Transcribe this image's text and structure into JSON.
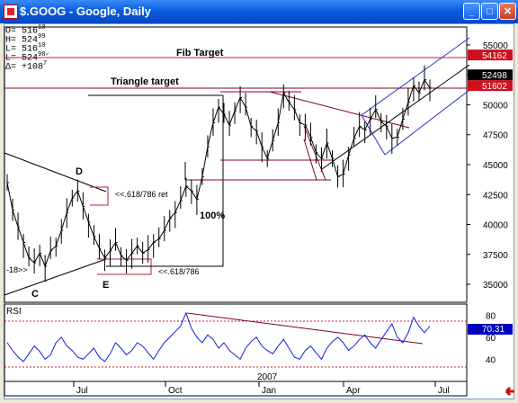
{
  "window": {
    "title": "$.GOOG - Google, Daily",
    "buttons": {
      "minimize": "_",
      "maximize": "□",
      "close": "✕"
    }
  },
  "ohlc": [
    {
      "label": "O=",
      "value": "516",
      "sup": "10"
    },
    {
      "label": "H=",
      "value": "524",
      "sup": "99"
    },
    {
      "label": "L=",
      "value": "516",
      "sup": "10"
    },
    {
      "label": "L=",
      "value": "524",
      "sup": "98✓"
    },
    {
      "label": "Δ=",
      "value": "+108",
      "sup": "7"
    }
  ],
  "annotations": {
    "fib_target": "Fib Target",
    "triangle_target": "Triangle target",
    "point_d": "D",
    "point_c": "C",
    "point_e": "E",
    "ret_label": "<<.618/786 ret",
    "ret_label2": "<<.618/786",
    "pct_label": "100%",
    "left_mark": "-18>>"
  },
  "price_axis": {
    "ticks": [
      "55000",
      "52500",
      "50000",
      "47500",
      "45000",
      "42500",
      "40000",
      "37500",
      "35000"
    ],
    "badges": [
      {
        "text": "54162",
        "color": "#d01020"
      },
      {
        "text": "52498",
        "color": "#000000"
      },
      {
        "text": "51602",
        "color": "#d01020"
      }
    ]
  },
  "rsi": {
    "label": "RSI",
    "ticks": [
      "80",
      "60",
      "40"
    ],
    "badge": "70.31",
    "badge_color": "#0000c0",
    "year_label": "2007"
  },
  "time_axis": {
    "ticks": [
      "Jul",
      "Oct",
      "Jan",
      "Apr",
      "Jul"
    ]
  },
  "colors": {
    "price": "#000000",
    "target_line": "#c02030",
    "channel": "#2030d0",
    "trend": "#800020",
    "rsi_line": "#1020e0"
  },
  "chart_data": {
    "type": "line",
    "title": "$.GOOG - Google, Daily",
    "ylim": [
      33500,
      56500
    ],
    "series": [
      {
        "name": "$.GOOG",
        "values": [
          43500,
          41200,
          39800,
          38500,
          37200,
          36800,
          37600,
          36500,
          37800,
          38200,
          39500,
          41000,
          42200,
          42800,
          41500,
          40200,
          39000,
          38000,
          37200,
          37800,
          38500,
          37400,
          37000,
          37600,
          38200,
          37600,
          37900,
          38500,
          38800,
          39500,
          40500,
          41000,
          42000,
          43200,
          42800,
          42100,
          44000,
          46500,
          48500,
          49800,
          49200,
          48300,
          49500,
          50600,
          49800,
          48200,
          47800,
          46500,
          45500,
          47000,
          48500,
          51000,
          50200,
          49600,
          48500,
          48300,
          47300,
          46000,
          45500,
          46800,
          45500,
          44000,
          44200,
          45800,
          47200,
          48200,
          47900,
          48800,
          49600,
          48600,
          48200,
          47200,
          47300,
          48800,
          50200,
          51600,
          51000,
          52100,
          51400
        ]
      },
      {
        "name": "RSI",
        "values": [
          55,
          48,
          42,
          38,
          45,
          52,
          47,
          40,
          44,
          55,
          60,
          52,
          48,
          42,
          40,
          45,
          50,
          42,
          38,
          45,
          55,
          50,
          44,
          48,
          55,
          52,
          46,
          40,
          48,
          55,
          60,
          65,
          70,
          82,
          68,
          60,
          55,
          62,
          58,
          50,
          55,
          48,
          44,
          40,
          50,
          56,
          60,
          52,
          48,
          45,
          52,
          58,
          50,
          42,
          40,
          48,
          52,
          46,
          40,
          50,
          56,
          60,
          55,
          48,
          52,
          58,
          62,
          55,
          50,
          58,
          65,
          72,
          60,
          55,
          64,
          78,
          70,
          64,
          70
        ]
      }
    ]
  }
}
